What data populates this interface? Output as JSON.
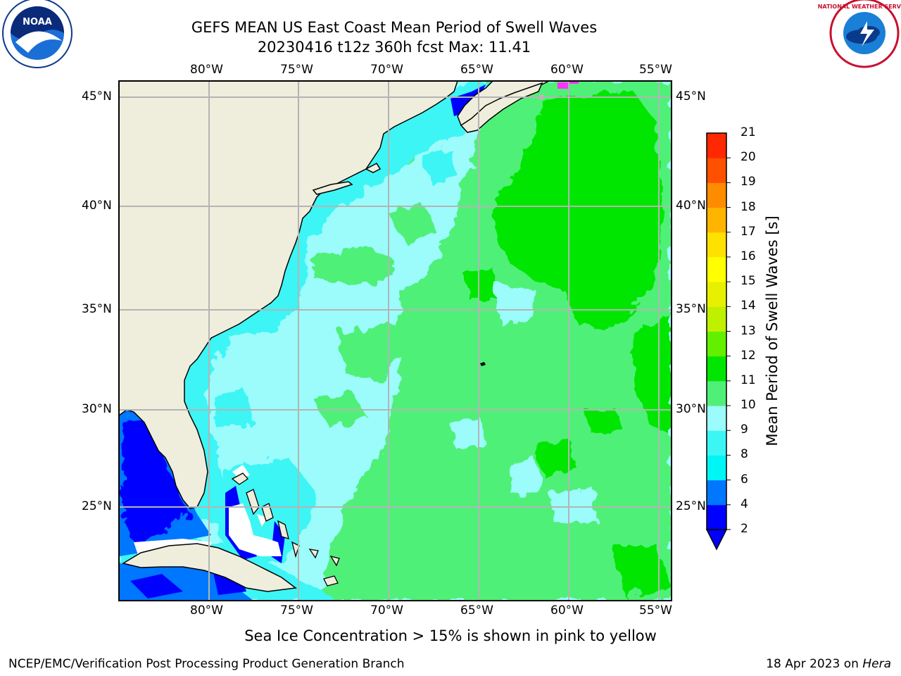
{
  "header": {
    "title": "GEFS MEAN US East Coast Mean Period of Swell Waves",
    "subtitle": "20230416 t12z 360h fcst   Max: 11.41"
  },
  "logos": {
    "noaa_text": "NOAA",
    "nws_text": "NATIONAL WEATHER SERVICE"
  },
  "map": {
    "lon_labels": [
      "80°W",
      "75°W",
      "70°W",
      "65°W",
      "60°W",
      "55°W"
    ],
    "lat_labels": [
      "45°N",
      "40°N",
      "35°N",
      "30°N",
      "25°N"
    ],
    "colors": {
      "land": "#efeddc",
      "very_low": "#0000ff",
      "low": "#0077ff",
      "cyan": "#3cf5f5",
      "light_cyan": "#9cfcfc",
      "light_green": "#50f078",
      "green": "#00e600",
      "ice_pink": "#ff33ff",
      "grid": "#b4b4b4"
    }
  },
  "colorbar": {
    "label": "Mean Period of Swell Waves [s]",
    "ticks": [
      "2",
      "4",
      "6",
      "8",
      "9",
      "10",
      "11",
      "12",
      "13",
      "14",
      "15",
      "16",
      "17",
      "18",
      "19",
      "20",
      "21"
    ],
    "colors": [
      "#0000ff",
      "#0077ff",
      "#00f5f5",
      "#3cf5f5",
      "#9cfcfc",
      "#50f078",
      "#00e600",
      "#62f000",
      "#bef000",
      "#e6f000",
      "#ffff00",
      "#ffe100",
      "#ffb400",
      "#ff8c00",
      "#ff5000",
      "#ff2800",
      "#ff0000"
    ]
  },
  "footer": {
    "caption": "Sea Ice Concentration > 15% is shown in pink to yellow",
    "credit": "NCEP/EMC/Verification Post Processing Product Generation Branch",
    "date": "18 Apr 2023 on",
    "machine": "Hera"
  }
}
